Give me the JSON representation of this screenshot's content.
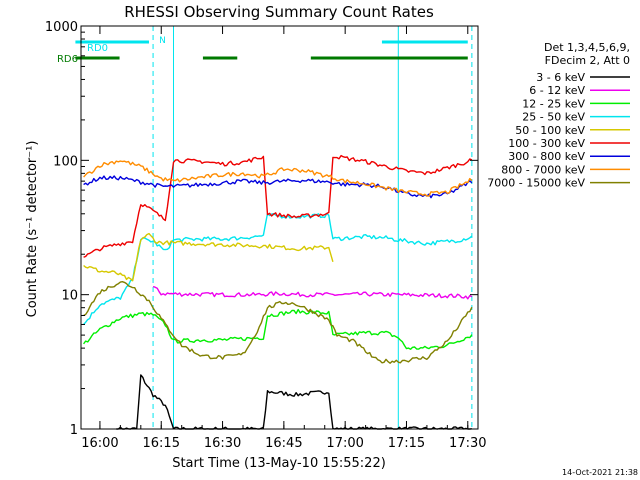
{
  "title": "RHESSI Observing Summary Count Rates",
  "footer_date": "14-Oct-2021 21:38",
  "flags": {
    "rd0_label": "RD0",
    "rd6_label": "RD6",
    "n_label": "N",
    "rd0_color": "#00e5ee",
    "rd6_color": "#007a00",
    "rd0_segments": [
      [
        15.9,
        16.2
      ],
      [
        17.15,
        17.5
      ]
    ],
    "rd6_segments": [
      [
        15.9,
        16.08
      ],
      [
        16.42,
        16.56
      ],
      [
        16.86,
        17.5
      ]
    ],
    "vertical_marker_color": "#00e5ee"
  },
  "legend": {
    "header_line1": "Det 1,3,4,5,6,9,",
    "header_line2": "FDecim 2, Att 0",
    "entries": [
      {
        "label": "3 - 6 keV",
        "color": "#000000"
      },
      {
        "label": "6 - 12 keV",
        "color": "#ee00ee"
      },
      {
        "label": "12 - 25 keV",
        "color": "#00ee00"
      },
      {
        "label": "25 - 50 keV",
        "color": "#00e5ee"
      },
      {
        "label": "50 - 100 keV",
        "color": "#d6c800"
      },
      {
        "label": "100 - 300 keV",
        "color": "#ee0000"
      },
      {
        "label": "300 - 800 keV",
        "color": "#0000dd"
      },
      {
        "label": "800 - 7000 keV",
        "color": "#ff8c00"
      },
      {
        "label": "7000 - 15000 keV",
        "color": "#808000"
      }
    ]
  },
  "chart_data": {
    "type": "line",
    "title": "RHESSI Observing Summary Count Rates",
    "xlabel": "Start Time (13-May-10 15:55:22)",
    "ylabel": "Count Rate (s⁻¹ detector⁻¹)",
    "y_scale": "log",
    "ylim": [
      1,
      1000
    ],
    "xlim": [
      "15:55:22",
      "17:32:30"
    ],
    "x_ticks": [
      "16:00",
      "16:15",
      "16:30",
      "16:45",
      "17:00",
      "17:15",
      "17:30"
    ],
    "y_ticks": [
      "1",
      "10",
      "100",
      "1000"
    ],
    "vertical_markers": [
      "16:13",
      "16:18",
      "17:13",
      "17:31"
    ],
    "series": [
      {
        "name": "3 - 6 keV",
        "points": [
          [
            "16:04",
            1.0
          ],
          [
            "16:09",
            1.0
          ],
          [
            "16:10",
            2.5
          ],
          [
            "16:13",
            1.8
          ],
          [
            "16:16",
            1.5
          ],
          [
            "16:18",
            1.0
          ],
          [
            "16:40",
            1.0
          ],
          [
            "16:41",
            1.9
          ],
          [
            "16:48",
            1.8
          ],
          [
            "16:56",
            1.9
          ],
          [
            "16:57",
            1.0
          ],
          [
            "17:31",
            1.0
          ]
        ]
      },
      {
        "name": "6 - 12 keV",
        "points": [
          [
            "16:13",
            11.5
          ],
          [
            "16:15",
            10.2
          ],
          [
            "16:20",
            10.1
          ],
          [
            "16:30",
            10.0
          ],
          [
            "16:38",
            10.0
          ],
          [
            "16:44",
            10.2
          ],
          [
            "16:50",
            10.0
          ],
          [
            "17:00",
            10.0
          ],
          [
            "17:05",
            10.1
          ],
          [
            "17:10",
            10.0
          ],
          [
            "17:13",
            10.0
          ],
          [
            "17:20",
            9.9
          ],
          [
            "17:27",
            9.8
          ],
          [
            "17:31",
            9.6
          ]
        ]
      },
      {
        "name": "12 - 25 keV",
        "points": [
          [
            "15:56",
            4.3
          ],
          [
            "16:00",
            5.5
          ],
          [
            "16:05",
            6.7
          ],
          [
            "16:10",
            7.2
          ],
          [
            "16:13",
            7.1
          ],
          [
            "16:16",
            6.0
          ],
          [
            "16:18",
            4.5
          ],
          [
            "16:25",
            4.6
          ],
          [
            "16:30",
            4.6
          ],
          [
            "16:35",
            4.7
          ],
          [
            "16:40",
            4.8
          ],
          [
            "16:41",
            7.0
          ],
          [
            "16:48",
            7.5
          ],
          [
            "16:56",
            7.3
          ],
          [
            "16:57",
            5.0
          ],
          [
            "17:05",
            5.2
          ],
          [
            "17:10",
            5.2
          ],
          [
            "17:13",
            4.8
          ],
          [
            "17:15",
            4.0
          ],
          [
            "17:20",
            4.0
          ],
          [
            "17:25",
            4.2
          ],
          [
            "17:31",
            5.0
          ]
        ]
      },
      {
        "name": "25 - 50 keV",
        "points": [
          [
            "15:56",
            6.0
          ],
          [
            "16:00",
            8.5
          ],
          [
            "16:05",
            9.5
          ],
          [
            "16:08",
            13.0
          ],
          [
            "16:10",
            26.0
          ],
          [
            "16:13",
            25.0
          ],
          [
            "16:16",
            21.0
          ],
          [
            "16:18",
            25.5
          ],
          [
            "16:25",
            26.0
          ],
          [
            "16:30",
            26.0
          ],
          [
            "16:35",
            26.5
          ],
          [
            "16:40",
            27.5
          ],
          [
            "16:41",
            39.0
          ],
          [
            "16:48",
            38.0
          ],
          [
            "16:56",
            39.0
          ],
          [
            "16:57",
            26.0
          ],
          [
            "17:05",
            27.0
          ],
          [
            "17:10",
            26.5
          ],
          [
            "17:13",
            25.5
          ],
          [
            "17:20",
            24.0
          ],
          [
            "17:28",
            25.5
          ],
          [
            "17:31",
            27.0
          ]
        ]
      },
      {
        "name": "50 - 100 keV",
        "points": [
          [
            "15:56",
            16.5
          ],
          [
            "16:00",
            15.0
          ],
          [
            "16:04",
            14.5
          ],
          [
            "16:07",
            13.0
          ],
          [
            "16:08",
            12.5
          ],
          [
            "16:10",
            26.0
          ],
          [
            "16:12",
            28.0
          ],
          [
            "16:14",
            24.5
          ],
          [
            "16:41",
            23.0
          ],
          [
            "16:48",
            22.0
          ],
          [
            "16:56",
            22.5
          ],
          [
            "16:57",
            18.0
          ]
        ]
      },
      {
        "name": "100 - 300 keV",
        "points": [
          [
            "15:56",
            19.0
          ],
          [
            "16:00",
            22.0
          ],
          [
            "16:05",
            24.0
          ],
          [
            "16:08",
            25.0
          ],
          [
            "16:10",
            48.0
          ],
          [
            "16:13",
            42.0
          ],
          [
            "16:16",
            36.0
          ],
          [
            "16:18",
            100.0
          ],
          [
            "16:25",
            98.0
          ],
          [
            "16:30",
            94.0
          ],
          [
            "16:35",
            97.0
          ],
          [
            "16:40",
            106.0
          ],
          [
            "16:41",
            40.0
          ],
          [
            "16:48",
            38.0
          ],
          [
            "16:56",
            40.0
          ],
          [
            "16:57",
            108.0
          ],
          [
            "17:05",
            98.0
          ],
          [
            "17:10",
            90.0
          ],
          [
            "17:15",
            83.0
          ],
          [
            "17:20",
            80.0
          ],
          [
            "17:25",
            88.0
          ],
          [
            "17:31",
            100.0
          ]
        ]
      },
      {
        "name": "300 - 800 keV",
        "points": [
          [
            "15:56",
            66.0
          ],
          [
            "16:00",
            74.0
          ],
          [
            "16:05",
            74.0
          ],
          [
            "16:10",
            69.0
          ],
          [
            "16:15",
            64.0
          ],
          [
            "16:18",
            64.0
          ],
          [
            "16:25",
            66.0
          ],
          [
            "16:30",
            68.0
          ],
          [
            "16:35",
            70.0
          ],
          [
            "16:40",
            68.0
          ],
          [
            "16:45",
            70.0
          ],
          [
            "16:50",
            71.0
          ],
          [
            "16:56",
            69.0
          ],
          [
            "17:00",
            66.0
          ],
          [
            "17:05",
            66.0
          ],
          [
            "17:10",
            63.0
          ],
          [
            "17:15",
            56.0
          ],
          [
            "17:20",
            54.0
          ],
          [
            "17:25",
            56.0
          ],
          [
            "17:31",
            70.0
          ]
        ]
      },
      {
        "name": "800 - 7000 keV",
        "points": [
          [
            "15:56",
            75.0
          ],
          [
            "16:00",
            92.0
          ],
          [
            "16:05",
            100.0
          ],
          [
            "16:10",
            90.0
          ],
          [
            "16:15",
            73.0
          ],
          [
            "16:18",
            70.0
          ],
          [
            "16:25",
            75.0
          ],
          [
            "16:30",
            78.0
          ],
          [
            "16:35",
            80.0
          ],
          [
            "16:40",
            76.0
          ],
          [
            "16:45",
            86.0
          ],
          [
            "16:50",
            84.0
          ],
          [
            "16:56",
            76.0
          ],
          [
            "17:00",
            70.0
          ],
          [
            "17:05",
            67.0
          ],
          [
            "17:10",
            62.0
          ],
          [
            "17:15",
            58.0
          ],
          [
            "17:20",
            56.0
          ],
          [
            "17:25",
            58.0
          ],
          [
            "17:31",
            72.0
          ]
        ]
      },
      {
        "name": "7000 - 15000 keV",
        "points": [
          [
            "15:56",
            7.0
          ],
          [
            "16:00",
            10.5
          ],
          [
            "16:05",
            12.5
          ],
          [
            "16:08",
            11.5
          ],
          [
            "16:12",
            9.0
          ],
          [
            "16:16",
            6.0
          ],
          [
            "16:20",
            4.2
          ],
          [
            "16:25",
            3.5
          ],
          [
            "16:30",
            3.4
          ],
          [
            "16:35",
            3.6
          ],
          [
            "16:38",
            5.0
          ],
          [
            "16:41",
            8.0
          ],
          [
            "16:45",
            8.8
          ],
          [
            "16:48",
            8.5
          ],
          [
            "16:52",
            7.5
          ],
          [
            "16:56",
            6.5
          ],
          [
            "16:58",
            5.0
          ],
          [
            "17:02",
            4.5
          ],
          [
            "17:08",
            3.2
          ],
          [
            "17:13",
            3.2
          ],
          [
            "17:20",
            3.4
          ],
          [
            "17:25",
            4.5
          ],
          [
            "17:31",
            8.0
          ]
        ]
      }
    ]
  }
}
